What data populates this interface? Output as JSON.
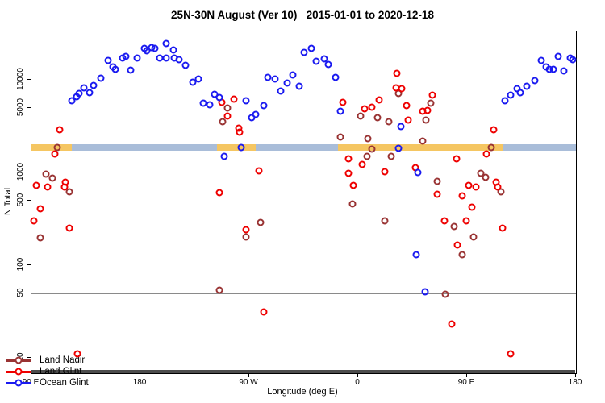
{
  "title": "25N-30N August (Ver 10)   2015-01-01 to 2020-12-18",
  "x_axis": {
    "label": "Longitude (deg E)",
    "range": [
      90,
      540
    ],
    "ticks": [
      {
        "value": 90,
        "label": "90 E"
      },
      {
        "value": 180,
        "label": "180"
      },
      {
        "value": 270,
        "label": "90 W"
      },
      {
        "value": 360,
        "label": "0"
      },
      {
        "value": 450,
        "label": "90 E"
      },
      {
        "value": 540,
        "label": "180"
      }
    ]
  },
  "y_axis": {
    "label": "N Total",
    "scale": "log",
    "range": [
      7,
      33000
    ],
    "ticks": [
      {
        "value": 10,
        "label": "10"
      },
      {
        "value": 50,
        "label": "50"
      },
      {
        "value": 100,
        "label": "100"
      },
      {
        "value": 500,
        "label": "500"
      },
      {
        "value": 1000,
        "label": "1000"
      },
      {
        "value": 5000,
        "label": "5000"
      },
      {
        "value": 10000,
        "label": "10000"
      }
    ]
  },
  "reference_line": {
    "value": 50,
    "color": "#8a8a8a"
  },
  "coverage_bands": {
    "n_low": 1700,
    "n_high": 2010,
    "colors": {
      "orange": "#F5C662",
      "blue": "#A9BDD9"
    },
    "segments": [
      {
        "from": 90,
        "to": 123,
        "type": "orange"
      },
      {
        "from": 123,
        "to": 243,
        "type": "blue"
      },
      {
        "from": 243,
        "to": 275,
        "type": "orange"
      },
      {
        "from": 275,
        "to": 343,
        "type": "blue"
      },
      {
        "from": 343,
        "to": 479,
        "type": "orange"
      },
      {
        "from": 479,
        "to": 540,
        "type": "blue"
      }
    ]
  },
  "legend": {
    "items": [
      {
        "label": "Land Nadir",
        "color": "#993333"
      },
      {
        "label": "Land Glint",
        "color": "#EE0000"
      },
      {
        "label": "Ocean Glint",
        "color": "#1A1AF0"
      }
    ]
  },
  "chart_data": {
    "type": "scatter",
    "title": "25N-30N August (Ver 10)   2015-01-01 to 2020-12-18",
    "xlabel": "Longitude (deg E)",
    "ylabel": "N Total",
    "x_note": "longitude axis wraps: 90E eastward through 180, 90W, 0, 90E to 180 (values 90-540)",
    "y_log_scale": true,
    "series": [
      {
        "name": "Land Nadir",
        "color": "#993333",
        "points": [
          [
            102,
            960
          ],
          [
            107,
            870
          ],
          [
            111,
            1860
          ],
          [
            121,
            620
          ],
          [
            97,
            198
          ],
          [
            252,
            5000
          ],
          [
            248,
            3500
          ],
          [
            279,
            290
          ],
          [
            267,
            200
          ],
          [
            245,
            54
          ],
          [
            345,
            2400
          ],
          [
            355,
            460
          ],
          [
            362,
            4100
          ],
          [
            367,
            1500
          ],
          [
            368,
            2300
          ],
          [
            371,
            1800
          ],
          [
            376,
            3900
          ],
          [
            382,
            300
          ],
          [
            385,
            3500
          ],
          [
            387,
            1500
          ],
          [
            393,
            7100
          ],
          [
            413,
            2200
          ],
          [
            416,
            3700
          ],
          [
            420,
            5600
          ],
          [
            425,
            800
          ],
          [
            432,
            49
          ],
          [
            439,
            260
          ],
          [
            446,
            130
          ],
          [
            455,
            200
          ],
          [
            461,
            980
          ],
          [
            465,
            880
          ],
          [
            470,
            1860
          ],
          [
            478,
            620
          ]
        ]
      },
      {
        "name": "Land Glint",
        "color": "#EE0000",
        "points": [
          [
            113,
            2900
          ],
          [
            109,
            1600
          ],
          [
            94,
            720
          ],
          [
            103,
            700
          ],
          [
            118,
            790
          ],
          [
            117,
            700
          ],
          [
            97,
            410
          ],
          [
            92,
            300
          ],
          [
            121,
            250
          ],
          [
            128,
            11
          ],
          [
            247,
            5700
          ],
          [
            257,
            6200
          ],
          [
            252,
            4100
          ],
          [
            261,
            3000
          ],
          [
            262,
            2700
          ],
          [
            278,
            1040
          ],
          [
            245,
            610
          ],
          [
            267,
            240
          ],
          [
            282,
            31
          ],
          [
            347,
            5700
          ],
          [
            365,
            4900
          ],
          [
            371,
            5100
          ],
          [
            377,
            6100
          ],
          [
            392,
            11700
          ],
          [
            391,
            8200
          ],
          [
            396,
            8000
          ],
          [
            400,
            5300
          ],
          [
            401,
            3700
          ],
          [
            413,
            4600
          ],
          [
            417,
            4700
          ],
          [
            421,
            6900
          ],
          [
            352,
            1400
          ],
          [
            363,
            1220
          ],
          [
            352,
            980
          ],
          [
            356,
            730
          ],
          [
            382,
            1020
          ],
          [
            407,
            1120
          ],
          [
            425,
            580
          ],
          [
            431,
            300
          ],
          [
            437,
            23
          ],
          [
            441,
            1400
          ],
          [
            442,
            165
          ],
          [
            446,
            560
          ],
          [
            449,
            300
          ],
          [
            451,
            730
          ],
          [
            454,
            420
          ],
          [
            457,
            700
          ],
          [
            466,
            1600
          ],
          [
            472,
            2900
          ],
          [
            474,
            790
          ],
          [
            475,
            700
          ],
          [
            479,
            250
          ],
          [
            486,
            11
          ]
        ]
      },
      {
        "name": "Ocean Glint",
        "color": "#1A1AF0",
        "points": [
          [
            123,
            5900
          ],
          [
            127,
            6600
          ],
          [
            129,
            7100
          ],
          [
            133,
            8200
          ],
          [
            138,
            7300
          ],
          [
            141,
            8700
          ],
          [
            147,
            10400
          ],
          [
            153,
            16200
          ],
          [
            157,
            13800
          ],
          [
            159,
            13000
          ],
          [
            165,
            17200
          ],
          [
            168,
            18000
          ],
          [
            172,
            12800
          ],
          [
            177,
            17200
          ],
          [
            183,
            22000
          ],
          [
            185,
            20600
          ],
          [
            189,
            22300
          ],
          [
            192,
            22000
          ],
          [
            196,
            17200
          ],
          [
            201,
            24500
          ],
          [
            201,
            17200
          ],
          [
            207,
            21100
          ],
          [
            208,
            17200
          ],
          [
            212,
            16600
          ],
          [
            217,
            14200
          ],
          [
            223,
            9400
          ],
          [
            228,
            10200
          ],
          [
            232,
            5600
          ],
          [
            237,
            5400
          ],
          [
            241,
            7000
          ],
          [
            245,
            6400
          ],
          [
            249,
            1500
          ],
          [
            263,
            1860
          ],
          [
            267,
            5900
          ],
          [
            272,
            3900
          ],
          [
            275,
            4200
          ],
          [
            282,
            5300
          ],
          [
            285,
            10700
          ],
          [
            291,
            10200
          ],
          [
            296,
            7500
          ],
          [
            301,
            9200
          ],
          [
            306,
            11300
          ],
          [
            311,
            8500
          ],
          [
            315,
            19800
          ],
          [
            321,
            22000
          ],
          [
            325,
            16000
          ],
          [
            332,
            16800
          ],
          [
            335,
            14700
          ],
          [
            341,
            10700
          ],
          [
            345,
            4600
          ],
          [
            393,
            1830
          ],
          [
            395,
            3100
          ],
          [
            409,
            1000
          ],
          [
            408,
            130
          ],
          [
            415,
            52
          ],
          [
            481,
            5900
          ],
          [
            486,
            6800
          ],
          [
            491,
            8100
          ],
          [
            494,
            7300
          ],
          [
            499,
            8500
          ],
          [
            506,
            9800
          ],
          [
            511,
            16200
          ],
          [
            515,
            13800
          ],
          [
            518,
            13000
          ],
          [
            521,
            13000
          ],
          [
            525,
            18000
          ],
          [
            530,
            12500
          ],
          [
            535,
            17200
          ],
          [
            537,
            16600
          ]
        ]
      }
    ]
  }
}
